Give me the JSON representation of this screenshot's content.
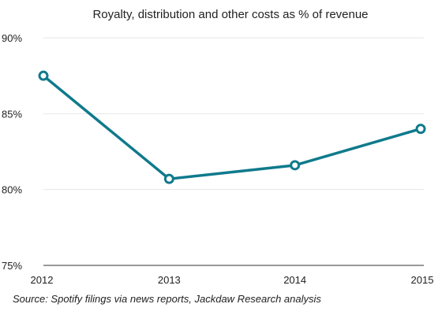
{
  "chart_data": {
    "type": "line",
    "title": "Royalty, distribution and other costs as % of revenue",
    "xlabel": "",
    "ylabel": "",
    "categories": [
      "2012",
      "2013",
      "2014",
      "2015"
    ],
    "series": [
      {
        "values": [
          87.5,
          80.7,
          81.6,
          84.0
        ],
        "color": "#0f7a8c"
      }
    ],
    "ylim": [
      75,
      90
    ],
    "yticks": [
      {
        "value": 75,
        "label": "75%"
      },
      {
        "value": 80,
        "label": "80%"
      },
      {
        "value": 85,
        "label": "85%"
      },
      {
        "value": 90,
        "label": "90%"
      }
    ],
    "grid": true,
    "marker": "hollow-circle"
  },
  "source": "Source: Spotify filings via news reports, Jackdaw Research analysis"
}
